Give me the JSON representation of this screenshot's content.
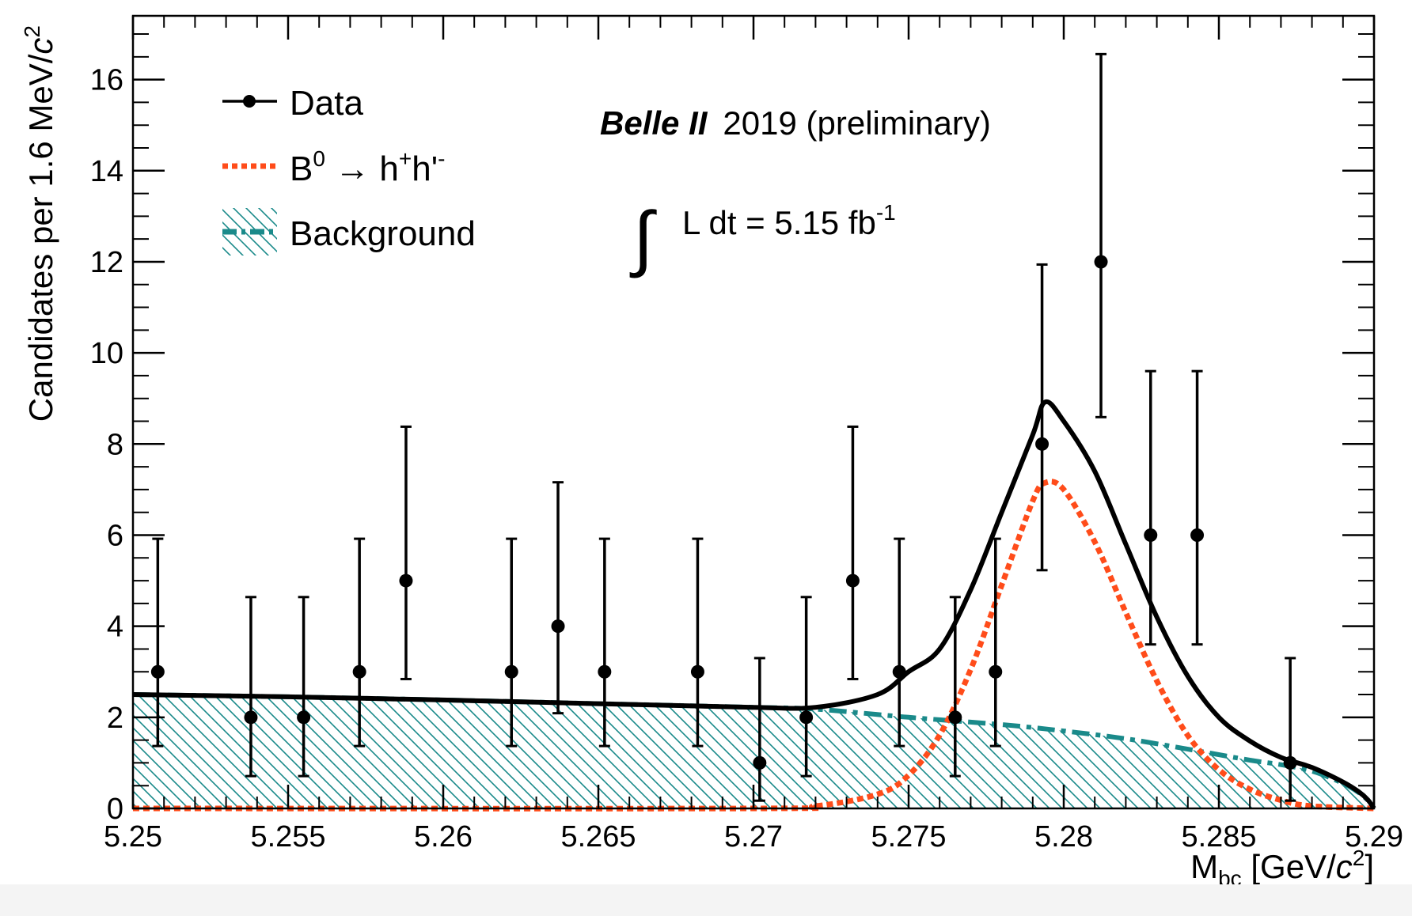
{
  "chart_data": {
    "type": "scatter",
    "xlabel_main": "M",
    "xlabel_sub": "bc",
    "xlabel_unit_pre": " [GeV/",
    "xlabel_unit_c": "c",
    "xlabel_unit_exp": "2",
    "xlabel_unit_post": "]",
    "ylabel_main": "Candidates per 1.6 MeV/",
    "ylabel_c": "c",
    "ylabel_exp": "2",
    "xlim": [
      5.25,
      5.29
    ],
    "ylim": [
      0,
      17.4
    ],
    "x_ticks": [
      5.25,
      5.255,
      5.26,
      5.265,
      5.27,
      5.275,
      5.28,
      5.285,
      5.29
    ],
    "x_tick_labels": [
      "5.25",
      "5.255",
      "5.26",
      "5.265",
      "5.27",
      "5.275",
      "5.28",
      "5.285",
      "5.29"
    ],
    "y_ticks": [
      0,
      2,
      4,
      6,
      8,
      10,
      12,
      14,
      16
    ],
    "y_tick_labels": [
      "0",
      "2",
      "4",
      "6",
      "8",
      "10",
      "12",
      "14",
      "16"
    ],
    "experiment": "Belle II",
    "year_note": "2019 (preliminary)",
    "lumi_integral": "∫",
    "lumi_text": "L dt = 5.15 fb",
    "lumi_exp": "-1",
    "legend": {
      "placement": "top-left",
      "data_label": "Data",
      "signal_label_b": "B",
      "signal_label_b_sup": "0",
      "signal_label_arrow": " → h",
      "signal_label_h1_sup": "+",
      "signal_label_h2": "h'",
      "signal_label_h2_sup": "-",
      "background_label": "Background"
    },
    "colors": {
      "data": "#000000",
      "total_fit": "#000000",
      "signal": "#ff4c1a",
      "background": "#1a8a8a"
    },
    "series": [
      {
        "name": "Data",
        "kind": "points",
        "points": [
          {
            "x": 5.2508,
            "y": 3,
            "err": [
              1.63,
              2.92
            ]
          },
          {
            "x": 5.2538,
            "y": 2,
            "err": [
              1.29,
              2.64
            ]
          },
          {
            "x": 5.2555,
            "y": 2,
            "err": [
              1.29,
              2.64
            ]
          },
          {
            "x": 5.2573,
            "y": 3,
            "err": [
              1.63,
              2.92
            ]
          },
          {
            "x": 5.2588,
            "y": 5,
            "err": [
              2.16,
              3.38
            ]
          },
          {
            "x": 5.2622,
            "y": 3,
            "err": [
              1.63,
              2.92
            ]
          },
          {
            "x": 5.2637,
            "y": 4,
            "err": [
              1.91,
              3.16
            ]
          },
          {
            "x": 5.2652,
            "y": 3,
            "err": [
              1.63,
              2.92
            ]
          },
          {
            "x": 5.2682,
            "y": 3,
            "err": [
              1.63,
              2.92
            ]
          },
          {
            "x": 5.2702,
            "y": 1,
            "err": [
              0.83,
              2.3
            ]
          },
          {
            "x": 5.2717,
            "y": 2,
            "err": [
              1.29,
              2.64
            ]
          },
          {
            "x": 5.2732,
            "y": 5,
            "err": [
              2.16,
              3.38
            ]
          },
          {
            "x": 5.2747,
            "y": 3,
            "err": [
              1.63,
              2.92
            ]
          },
          {
            "x": 5.2765,
            "y": 2,
            "err": [
              1.29,
              2.64
            ]
          },
          {
            "x": 5.2778,
            "y": 3,
            "err": [
              1.63,
              2.92
            ]
          },
          {
            "x": 5.2793,
            "y": 8,
            "err": [
              2.77,
              3.94
            ]
          },
          {
            "x": 5.2812,
            "y": 12,
            "err": [
              3.41,
              4.56
            ]
          },
          {
            "x": 5.2828,
            "y": 6,
            "err": [
              2.4,
              3.6
            ]
          },
          {
            "x": 5.2843,
            "y": 6,
            "err": [
              2.4,
              3.6
            ]
          },
          {
            "x": 5.2873,
            "y": 1,
            "err": [
              0.83,
              2.3
            ]
          }
        ]
      },
      {
        "name": "B0 → h+h'-",
        "kind": "curve",
        "peak_x": 5.2794,
        "peak_y": 7.15,
        "x": [
          5.25,
          5.27,
          5.272,
          5.274,
          5.275,
          5.276,
          5.277,
          5.278,
          5.279,
          5.2794,
          5.28,
          5.281,
          5.282,
          5.283,
          5.284,
          5.285,
          5.286,
          5.287,
          5.288,
          5.29
        ],
        "y": [
          0.0,
          0.0,
          0.05,
          0.31,
          0.73,
          1.61,
          3.05,
          4.9,
          6.75,
          7.15,
          7.0,
          5.85,
          4.3,
          2.8,
          1.6,
          0.85,
          0.42,
          0.18,
          0.05,
          0.0
        ]
      },
      {
        "name": "Background",
        "kind": "curve",
        "x": [
          5.25,
          5.255,
          5.26,
          5.265,
          5.27,
          5.272,
          5.275,
          5.278,
          5.28,
          5.282,
          5.284,
          5.286,
          5.287,
          5.288,
          5.289,
          5.2895,
          5.2898,
          5.29
        ],
        "y": [
          2.5,
          2.45,
          2.38,
          2.3,
          2.22,
          2.18,
          2.0,
          1.84,
          1.7,
          1.53,
          1.3,
          1.06,
          0.96,
          0.82,
          0.55,
          0.35,
          0.18,
          0.0
        ]
      },
      {
        "name": "Total fit",
        "kind": "curve",
        "x": [
          5.25,
          5.255,
          5.26,
          5.265,
          5.27,
          5.272,
          5.274,
          5.275,
          5.276,
          5.277,
          5.278,
          5.279,
          5.2794,
          5.28,
          5.281,
          5.282,
          5.283,
          5.284,
          5.285,
          5.286,
          5.287,
          5.288,
          5.289,
          5.2895,
          5.2898,
          5.29
        ],
        "y": [
          2.5,
          2.45,
          2.38,
          2.3,
          2.22,
          2.22,
          2.5,
          3.0,
          3.5,
          4.8,
          6.5,
          8.2,
          8.92,
          8.5,
          7.4,
          5.8,
          4.2,
          2.9,
          2.0,
          1.48,
          1.12,
          0.9,
          0.58,
          0.37,
          0.19,
          0.0
        ]
      }
    ]
  }
}
